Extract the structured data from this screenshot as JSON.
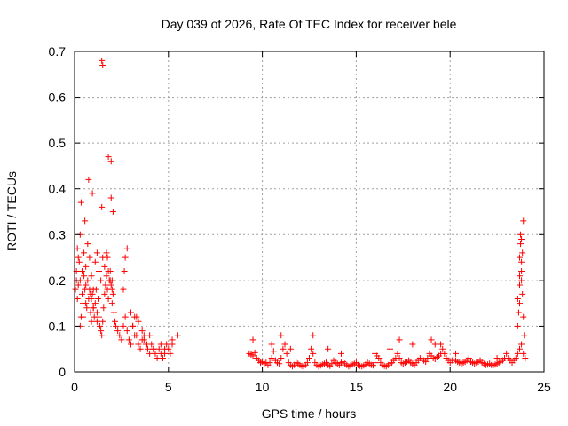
{
  "chart_data": {
    "type": "scatter",
    "title": "Day 039 of 2026, Rate Of TEC Index for receiver bele",
    "xlabel": "GPS time / hours",
    "ylabel": "ROTI / TECUs",
    "xlim": [
      0,
      25
    ],
    "ylim": [
      0,
      0.7
    ],
    "xticks": [
      0,
      5,
      10,
      15,
      20,
      25
    ],
    "xtick_labels": [
      "0",
      "5",
      "10",
      "15",
      "20",
      "25"
    ],
    "yticks": [
      0,
      0.1,
      0.2,
      0.3,
      0.4,
      0.5,
      0.6,
      0.7
    ],
    "ytick_labels": [
      "0",
      "0.1",
      "0.2",
      "0.3",
      "0.4",
      "0.5",
      "0.6",
      "0.7"
    ],
    "grid": true,
    "marker": "plus",
    "color": "#ff0000",
    "series": [
      {
        "x": [
          0.05,
          0.1,
          0.15,
          0.2,
          0.25,
          0.3,
          0.35,
          0.4,
          0.45,
          0.5,
          0.55,
          0.6,
          0.65,
          0.7,
          0.75,
          0.8,
          0.85,
          0.9,
          0.95,
          1.0,
          1.05,
          1.1,
          1.15,
          1.2,
          1.25,
          1.3,
          1.35,
          1.4,
          1.45,
          1.5,
          1.55,
          1.6,
          1.65,
          1.7,
          1.75,
          1.8,
          1.85,
          1.9,
          1.95,
          2.0,
          2.05,
          2.1,
          2.15,
          2.2,
          2.3,
          2.4,
          2.5,
          2.6,
          2.7,
          2.8,
          2.9,
          3.0,
          3.1,
          3.2,
          3.3,
          3.4,
          3.5,
          3.6,
          3.7,
          3.8,
          3.9,
          4.0,
          4.1,
          4.2,
          4.3,
          4.4,
          4.5,
          4.6,
          4.7,
          4.8,
          4.9,
          5.0,
          5.1,
          5.2,
          5.5,
          0.1,
          0.2,
          0.3,
          0.4,
          0.5,
          0.6,
          0.7,
          0.8,
          0.9,
          1.0,
          1.1,
          1.2,
          1.3,
          1.4,
          1.5,
          1.6,
          1.7,
          1.8,
          1.9,
          2.0,
          0.15,
          0.35,
          0.55,
          0.75,
          0.95,
          1.45,
          1.75,
          1.95,
          2.05,
          0.3,
          0.45,
          0.6,
          0.85,
          0.9,
          1.0,
          1.2,
          1.45,
          1.5,
          1.8,
          1.95,
          2.0,
          2.6,
          2.65,
          2.7,
          2.8,
          3.0,
          3.1,
          3.2,
          3.3,
          3.4,
          3.6,
          3.7,
          3.85,
          4.0,
          4.2,
          4.6,
          4.8,
          5.2,
          9.3,
          9.4,
          9.5,
          9.6,
          9.7,
          9.8,
          9.9,
          10.0,
          10.1,
          10.2,
          10.3,
          10.4,
          10.5,
          10.6,
          10.7,
          10.8,
          10.9,
          11.0,
          11.1,
          11.2,
          11.3,
          11.4,
          11.5,
          11.6,
          11.7,
          11.8,
          11.9,
          12.0,
          12.1,
          12.2,
          12.3,
          12.4,
          12.5,
          12.6,
          12.7,
          12.8,
          12.9,
          13.0,
          13.1,
          13.2,
          13.3,
          13.4,
          13.5,
          13.6,
          13.7,
          13.8,
          13.9,
          14.0,
          14.1,
          14.2,
          14.3,
          14.4,
          14.5,
          14.6,
          14.7,
          14.8,
          14.9,
          15.0,
          15.1,
          15.2,
          15.3,
          15.4,
          15.5,
          15.6,
          15.7,
          15.8,
          15.9,
          16.0,
          16.1,
          16.2,
          16.3,
          16.4,
          16.5,
          16.6,
          16.7,
          16.8,
          16.9,
          17.0,
          17.1,
          17.2,
          17.3,
          17.4,
          17.5,
          17.6,
          17.7,
          17.8,
          17.9,
          18.0,
          18.1,
          18.2,
          18.3,
          18.4,
          18.5,
          18.6,
          18.7,
          18.8,
          18.9,
          19.0,
          19.1,
          19.2,
          19.3,
          19.4,
          19.5,
          19.6,
          19.7,
          19.8,
          19.9,
          20.0,
          20.1,
          20.2,
          20.3,
          20.4,
          20.5,
          20.6,
          20.7,
          20.8,
          20.9,
          21.0,
          21.1,
          21.2,
          21.3,
          21.4,
          21.5,
          21.6,
          21.7,
          21.8,
          21.9,
          22.0,
          22.1,
          22.2,
          22.3,
          22.4,
          22.5,
          22.6,
          22.7,
          22.8,
          22.9,
          23.0,
          23.1,
          23.2,
          23.3,
          23.4,
          23.5,
          23.6,
          23.7,
          23.8,
          23.9,
          24.0,
          9.5,
          10.5,
          11.0,
          11.5,
          12.7,
          13.5,
          14.2,
          16.0,
          16.8,
          17.3,
          18.0,
          19.0,
          19.2,
          19.5,
          20.3,
          21.0,
          22.5,
          23.6,
          23.65,
          23.7,
          23.7,
          23.75,
          23.8,
          23.8,
          23.85,
          23.9,
          23.6,
          23.7,
          23.75,
          23.8,
          23.85,
          23.9,
          23.95,
          23.7,
          23.8
        ],
        "y": [
          0.18,
          0.22,
          0.16,
          0.19,
          0.24,
          0.2,
          0.12,
          0.17,
          0.15,
          0.21,
          0.18,
          0.19,
          0.14,
          0.2,
          0.16,
          0.18,
          0.13,
          0.11,
          0.17,
          0.14,
          0.12,
          0.15,
          0.18,
          0.13,
          0.16,
          0.12,
          0.1,
          0.09,
          0.08,
          0.11,
          0.14,
          0.17,
          0.19,
          0.21,
          0.18,
          0.16,
          0.2,
          0.22,
          0.19,
          0.15,
          0.17,
          0.13,
          0.11,
          0.1,
          0.09,
          0.08,
          0.07,
          0.1,
          0.12,
          0.09,
          0.07,
          0.06,
          0.1,
          0.12,
          0.08,
          0.06,
          0.05,
          0.07,
          0.08,
          0.06,
          0.05,
          0.04,
          0.06,
          0.05,
          0.04,
          0.03,
          0.05,
          0.04,
          0.03,
          0.05,
          0.06,
          0.05,
          0.04,
          0.06,
          0.08,
          0.2,
          0.25,
          0.3,
          0.22,
          0.26,
          0.23,
          0.28,
          0.25,
          0.21,
          0.18,
          0.24,
          0.26,
          0.22,
          0.2,
          0.25,
          0.23,
          0.26,
          0.22,
          0.2,
          0.18,
          0.27,
          0.37,
          0.33,
          0.42,
          0.39,
          0.36,
          0.25,
          0.38,
          0.35,
          0.1,
          0.12,
          0.15,
          0.17,
          0.16,
          0.14,
          0.11,
          0.68,
          0.67,
          0.47,
          0.46,
          0.2,
          0.18,
          0.22,
          0.25,
          0.27,
          0.13,
          0.1,
          0.08,
          0.12,
          0.11,
          0.09,
          0.07,
          0.06,
          0.08,
          0.05,
          0.06,
          0.04,
          0.07,
          0.04,
          0.038,
          0.035,
          0.042,
          0.03,
          0.025,
          0.02,
          0.022,
          0.018,
          0.02,
          0.015,
          0.02,
          0.03,
          0.045,
          0.025,
          0.02,
          0.018,
          0.03,
          0.05,
          0.06,
          0.04,
          0.02,
          0.015,
          0.012,
          0.015,
          0.02,
          0.018,
          0.015,
          0.013,
          0.012,
          0.015,
          0.02,
          0.03,
          0.05,
          0.04,
          0.02,
          0.015,
          0.012,
          0.014,
          0.016,
          0.018,
          0.02,
          0.015,
          0.013,
          0.018,
          0.025,
          0.02,
          0.018,
          0.015,
          0.02,
          0.022,
          0.018,
          0.015,
          0.012,
          0.014,
          0.016,
          0.018,
          0.02,
          0.015,
          0.013,
          0.012,
          0.014,
          0.016,
          0.02,
          0.018,
          0.015,
          0.014,
          0.02,
          0.035,
          0.03,
          0.02,
          0.015,
          0.013,
          0.012,
          0.015,
          0.018,
          0.02,
          0.025,
          0.03,
          0.04,
          0.03,
          0.02,
          0.018,
          0.02,
          0.022,
          0.025,
          0.02,
          0.018,
          0.015,
          0.02,
          0.025,
          0.03,
          0.028,
          0.025,
          0.022,
          0.03,
          0.04,
          0.035,
          0.03,
          0.028,
          0.032,
          0.035,
          0.06,
          0.05,
          0.04,
          0.03,
          0.025,
          0.02,
          0.025,
          0.028,
          0.025,
          0.022,
          0.02,
          0.018,
          0.02,
          0.022,
          0.025,
          0.028,
          0.022,
          0.02,
          0.018,
          0.02,
          0.022,
          0.025,
          0.02,
          0.018,
          0.015,
          0.016,
          0.018,
          0.015,
          0.014,
          0.016,
          0.018,
          0.02,
          0.022,
          0.025,
          0.03,
          0.04,
          0.03,
          0.025,
          0.02,
          0.025,
          0.03,
          0.04,
          0.05,
          0.06,
          0.04,
          0.03,
          0.07,
          0.06,
          0.08,
          0.05,
          0.08,
          0.05,
          0.04,
          0.04,
          0.05,
          0.07,
          0.06,
          0.07,
          0.06,
          0.04,
          0.04,
          0.03,
          0.03,
          0.1,
          0.13,
          0.15,
          0.25,
          0.3,
          0.29,
          0.22,
          0.26,
          0.33,
          0.16,
          0.21,
          0.28,
          0.24,
          0.17,
          0.12,
          0.08,
          0.19,
          0.2
        ]
      }
    ]
  }
}
